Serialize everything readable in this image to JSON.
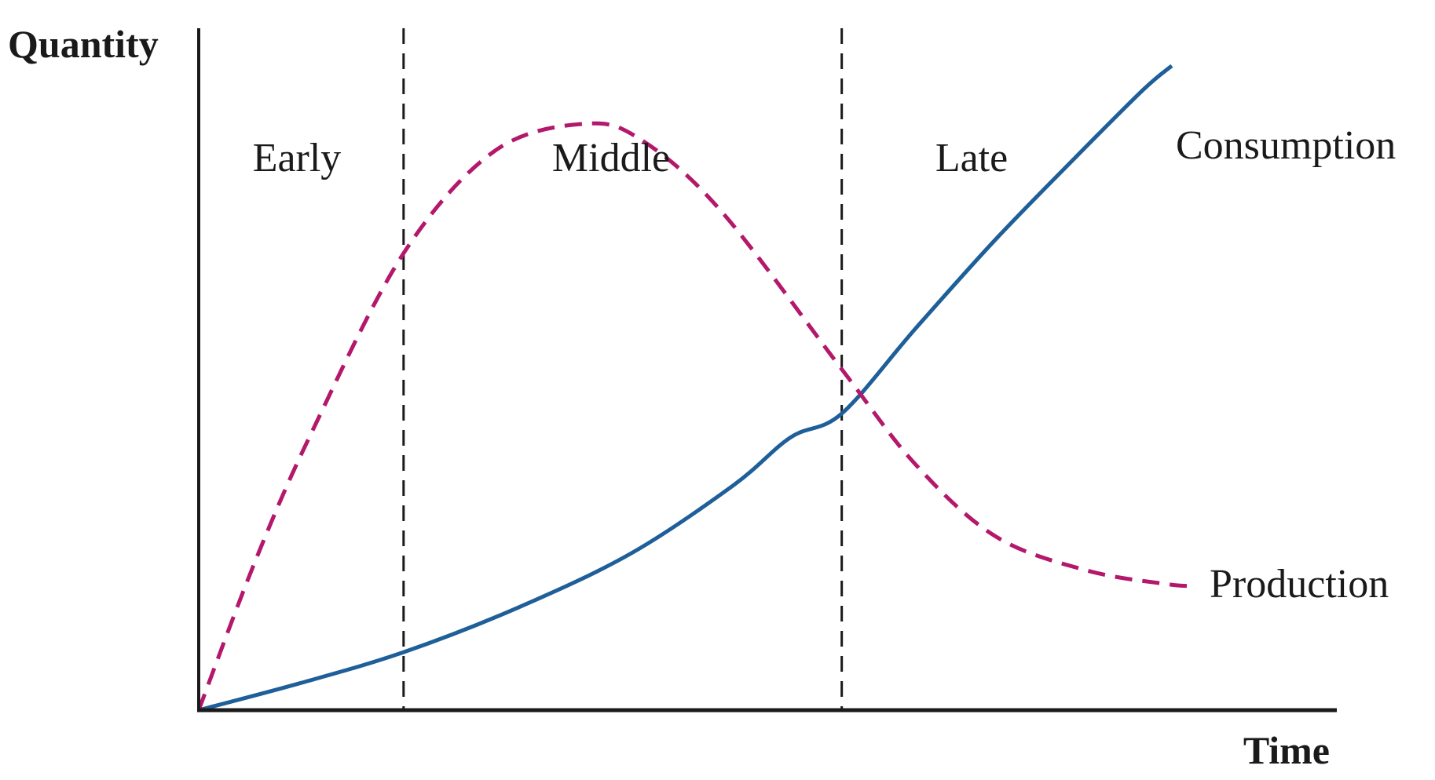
{
  "chart_data": {
    "type": "line",
    "title": "",
    "xlabel": "Time",
    "ylabel": "Quantity",
    "xlim": [
      0,
      10
    ],
    "ylim": [
      0,
      10
    ],
    "grid": false,
    "legend": "none (series labelled at line ends)",
    "phases": [
      {
        "label": "Early",
        "start": 0,
        "end": 1.8
      },
      {
        "label": "Middle",
        "start": 1.8,
        "end": 5.65
      },
      {
        "label": "Late",
        "start": 5.65,
        "end": 10
      }
    ],
    "series": [
      {
        "name": "Consumption",
        "style": "solid",
        "color": "#1f5f99",
        "x": [
          0,
          0.9,
          1.8,
          2.8,
          3.8,
          4.7,
          5.2,
          5.65,
          6.3,
          7.0,
          7.7,
          8.3,
          8.55
        ],
        "y": [
          0,
          0.4,
          0.85,
          1.5,
          2.3,
          3.3,
          4.0,
          4.35,
          5.6,
          6.9,
          8.1,
          9.1,
          9.45
        ]
      },
      {
        "name": "Production",
        "style": "dashed",
        "color": "#b3186b",
        "x": [
          0,
          0.5,
          1.0,
          1.8,
          2.6,
          3.4,
          3.9,
          4.6,
          5.65,
          6.3,
          7.0,
          7.8,
          8.5,
          8.75
        ],
        "y": [
          0,
          2.2,
          4.1,
          6.7,
          8.2,
          8.6,
          8.35,
          7.3,
          5.0,
          3.6,
          2.55,
          2.05,
          1.85,
          1.82
        ]
      }
    ]
  }
}
